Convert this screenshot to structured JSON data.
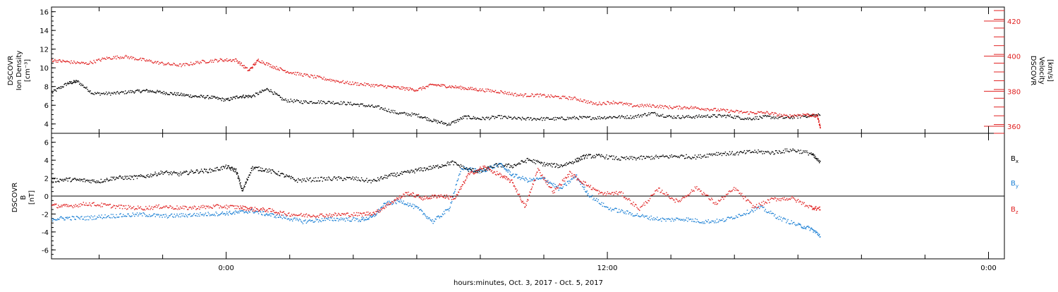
{
  "page": {
    "xaxis_title": "hours:minutes, Oct. 3, 2017 - Oct. 5, 2017"
  },
  "colors": {
    "black": "#000000",
    "red": "#e02020",
    "blue": "#1a7fd4"
  },
  "chart_data": [
    {
      "type": "scatter",
      "title": "",
      "x_range_hours": [
        -5.5,
        24.5
      ],
      "x_ticks": [
        {
          "hour": 0,
          "label": "0:00"
        },
        {
          "hour": 12,
          "label": "12:00"
        },
        {
          "hour": 24,
          "label": "0:00"
        }
      ],
      "left_axis": {
        "label_lines": [
          "DSCOVR",
          "Ion Density",
          "[cm⁻³]"
        ],
        "ylim": [
          3,
          16.5
        ],
        "ticks": [
          4,
          6,
          8,
          10,
          12,
          14,
          16
        ]
      },
      "right_axis": {
        "label_lines": [
          "DSCOVR",
          "Velocity",
          "[km/s]"
        ],
        "ylim": [
          356,
          428
        ],
        "ticks": [
          360,
          380,
          400,
          420
        ]
      },
      "series": [
        {
          "name": "",
          "axis": "left",
          "color": "#000000",
          "points": [
            [
              -5.5,
              7.4
            ],
            [
              -5.0,
              8.4
            ],
            [
              -4.7,
              8.6
            ],
            [
              -4.2,
              7.3
            ],
            [
              -3.6,
              7.3
            ],
            [
              -3.0,
              7.5
            ],
            [
              -2.5,
              7.6
            ],
            [
              -2.0,
              7.4
            ],
            [
              -1.5,
              7.2
            ],
            [
              -1.0,
              7.0
            ],
            [
              -0.5,
              6.9
            ],
            [
              0.0,
              6.6
            ],
            [
              0.4,
              7.0
            ],
            [
              0.8,
              7.0
            ],
            [
              1.3,
              7.8
            ],
            [
              1.8,
              6.6
            ],
            [
              2.4,
              6.4
            ],
            [
              3.0,
              6.4
            ],
            [
              3.6,
              6.3
            ],
            [
              4.2,
              6.1
            ],
            [
              4.8,
              5.8
            ],
            [
              5.4,
              5.2
            ],
            [
              6.0,
              5.0
            ],
            [
              6.5,
              4.4
            ],
            [
              7.0,
              4.0
            ],
            [
              7.5,
              4.8
            ],
            [
              8.0,
              4.6
            ],
            [
              8.6,
              4.8
            ],
            [
              9.2,
              4.6
            ],
            [
              9.8,
              4.6
            ],
            [
              10.4,
              4.6
            ],
            [
              11.0,
              4.7
            ],
            [
              11.6,
              4.7
            ],
            [
              12.2,
              4.8
            ],
            [
              12.8,
              4.8
            ],
            [
              13.4,
              5.2
            ],
            [
              14.0,
              4.8
            ],
            [
              14.6,
              4.8
            ],
            [
              15.2,
              4.9
            ],
            [
              15.8,
              4.9
            ],
            [
              16.4,
              4.6
            ],
            [
              17.0,
              4.8
            ],
            [
              17.6,
              4.7
            ],
            [
              18.2,
              4.9
            ],
            [
              18.7,
              5.0
            ]
          ]
        },
        {
          "name": "",
          "axis": "right",
          "color": "#e02020",
          "points": [
            [
              -5.5,
              398
            ],
            [
              -5.0,
              397
            ],
            [
              -4.4,
              396
            ],
            [
              -3.8,
              399
            ],
            [
              -3.2,
              400
            ],
            [
              -2.6,
              398
            ],
            [
              -2.0,
              396
            ],
            [
              -1.4,
              395
            ],
            [
              -0.8,
              397
            ],
            [
              -0.2,
              398
            ],
            [
              0.3,
              398
            ],
            [
              0.7,
              392
            ],
            [
              1.0,
              398
            ],
            [
              1.5,
              394
            ],
            [
              2.0,
              391
            ],
            [
              2.6,
              389
            ],
            [
              3.2,
              387
            ],
            [
              3.8,
              385
            ],
            [
              4.4,
              384
            ],
            [
              5.0,
              383
            ],
            [
              5.5,
              382
            ],
            [
              6.0,
              381
            ],
            [
              6.5,
              384
            ],
            [
              7.0,
              383
            ],
            [
              7.5,
              382
            ],
            [
              8.0,
              381
            ],
            [
              8.6,
              380
            ],
            [
              9.2,
              378
            ],
            [
              9.8,
              378
            ],
            [
              10.4,
              377
            ],
            [
              11.0,
              376
            ],
            [
              11.6,
              373
            ],
            [
              12.2,
              374
            ],
            [
              12.8,
              372
            ],
            [
              13.4,
              372
            ],
            [
              14.0,
              371
            ],
            [
              14.6,
              371
            ],
            [
              15.2,
              370
            ],
            [
              15.8,
              369
            ],
            [
              16.4,
              368
            ],
            [
              17.0,
              368
            ],
            [
              17.6,
              366
            ],
            [
              18.2,
              367
            ],
            [
              18.6,
              366
            ],
            [
              18.7,
              359
            ]
          ]
        }
      ]
    },
    {
      "type": "scatter",
      "title": "",
      "x_range_hours": [
        -5.5,
        24.5
      ],
      "left_axis": {
        "label_lines": [
          "DSCOVR",
          "B",
          "[nT]"
        ],
        "ylim": [
          -7,
          7
        ],
        "ticks": [
          -6,
          -4,
          -2,
          0,
          2,
          4,
          6
        ]
      },
      "zero_line": true,
      "series": [
        {
          "name": "Bx",
          "color": "#000000",
          "points": [
            [
              -5.5,
              1.8
            ],
            [
              -5.0,
              1.9
            ],
            [
              -4.5,
              1.8
            ],
            [
              -4.0,
              1.7
            ],
            [
              -3.5,
              2.1
            ],
            [
              -3.0,
              2.1
            ],
            [
              -2.5,
              2.3
            ],
            [
              -2.0,
              2.7
            ],
            [
              -1.5,
              2.5
            ],
            [
              -1.0,
              2.8
            ],
            [
              -0.5,
              2.9
            ],
            [
              0.0,
              3.3
            ],
            [
              0.3,
              2.9
            ],
            [
              0.5,
              0.6
            ],
            [
              0.8,
              3.2
            ],
            [
              1.2,
              3.0
            ],
            [
              1.7,
              2.5
            ],
            [
              2.2,
              1.8
            ],
            [
              2.8,
              1.9
            ],
            [
              3.4,
              2.0
            ],
            [
              4.0,
              2.0
            ],
            [
              4.6,
              1.7
            ],
            [
              5.1,
              2.3
            ],
            [
              5.6,
              2.6
            ],
            [
              6.1,
              3.0
            ],
            [
              6.6,
              3.3
            ],
            [
              7.1,
              3.8
            ],
            [
              7.6,
              3.0
            ],
            [
              8.0,
              2.8
            ],
            [
              8.5,
              3.5
            ],
            [
              9.0,
              3.4
            ],
            [
              9.5,
              4.1
            ],
            [
              10.0,
              3.6
            ],
            [
              10.5,
              3.4
            ],
            [
              11.0,
              4.0
            ],
            [
              11.3,
              4.5
            ],
            [
              11.8,
              4.5
            ],
            [
              12.4,
              4.2
            ],
            [
              13.0,
              4.3
            ],
            [
              13.6,
              4.4
            ],
            [
              14.2,
              4.5
            ],
            [
              14.8,
              4.4
            ],
            [
              15.4,
              4.8
            ],
            [
              16.0,
              4.8
            ],
            [
              16.6,
              5.0
            ],
            [
              17.2,
              4.9
            ],
            [
              17.8,
              5.2
            ],
            [
              18.4,
              4.8
            ],
            [
              18.7,
              3.7
            ]
          ]
        },
        {
          "name": "By",
          "color": "#1a7fd4",
          "points": [
            [
              -5.5,
              -2.5
            ],
            [
              -5.0,
              -2.4
            ],
            [
              -4.4,
              -2.4
            ],
            [
              -3.8,
              -2.2
            ],
            [
              -3.2,
              -2.1
            ],
            [
              -2.6,
              -2.0
            ],
            [
              -2.0,
              -2.2
            ],
            [
              -1.4,
              -2.1
            ],
            [
              -0.8,
              -2.0
            ],
            [
              -0.2,
              -1.9
            ],
            [
              0.3,
              -1.8
            ],
            [
              0.8,
              -1.6
            ],
            [
              1.3,
              -2.0
            ],
            [
              1.8,
              -2.3
            ],
            [
              2.4,
              -2.8
            ],
            [
              3.0,
              -2.6
            ],
            [
              3.6,
              -2.5
            ],
            [
              4.2,
              -2.6
            ],
            [
              4.6,
              -2.3
            ],
            [
              5.0,
              -0.8
            ],
            [
              5.5,
              -0.5
            ],
            [
              6.0,
              -1.3
            ],
            [
              6.5,
              -2.8
            ],
            [
              7.0,
              -1.4
            ],
            [
              7.4,
              3.2
            ],
            [
              8.0,
              2.8
            ],
            [
              8.6,
              3.6
            ],
            [
              9.0,
              2.4
            ],
            [
              9.5,
              1.8
            ],
            [
              10.0,
              2.0
            ],
            [
              10.5,
              0.8
            ],
            [
              11.0,
              2.3
            ],
            [
              11.4,
              0.2
            ],
            [
              12.0,
              -1.3
            ],
            [
              12.6,
              -1.8
            ],
            [
              13.2,
              -2.3
            ],
            [
              13.8,
              -2.6
            ],
            [
              14.4,
              -2.5
            ],
            [
              15.0,
              -2.8
            ],
            [
              15.6,
              -2.7
            ],
            [
              16.2,
              -2.0
            ],
            [
              16.8,
              -1.2
            ],
            [
              17.4,
              -2.4
            ],
            [
              18.0,
              -3.2
            ],
            [
              18.4,
              -3.6
            ],
            [
              18.7,
              -4.4
            ]
          ]
        },
        {
          "name": "Bz",
          "color": "#e02020",
          "points": [
            [
              -5.5,
              -1.0
            ],
            [
              -5.0,
              -1.1
            ],
            [
              -4.4,
              -0.8
            ],
            [
              -3.8,
              -1.0
            ],
            [
              -3.2,
              -1.2
            ],
            [
              -2.6,
              -1.3
            ],
            [
              -2.0,
              -1.1
            ],
            [
              -1.4,
              -1.3
            ],
            [
              -0.8,
              -1.2
            ],
            [
              -0.2,
              -1.1
            ],
            [
              0.4,
              -1.2
            ],
            [
              0.8,
              -1.4
            ],
            [
              1.3,
              -1.5
            ],
            [
              1.8,
              -1.9
            ],
            [
              2.4,
              -2.1
            ],
            [
              3.0,
              -2.1
            ],
            [
              3.6,
              -2.0
            ],
            [
              4.2,
              -2.0
            ],
            [
              4.7,
              -1.8
            ],
            [
              5.2,
              -0.6
            ],
            [
              5.7,
              0.4
            ],
            [
              6.2,
              -0.2
            ],
            [
              6.7,
              0.1
            ],
            [
              7.2,
              -0.2
            ],
            [
              7.6,
              2.4
            ],
            [
              8.1,
              3.3
            ],
            [
              8.6,
              2.4
            ],
            [
              9.0,
              1.6
            ],
            [
              9.4,
              -1.2
            ],
            [
              9.8,
              3.0
            ],
            [
              10.3,
              0.5
            ],
            [
              10.8,
              2.6
            ],
            [
              11.3,
              1.4
            ],
            [
              11.8,
              0.3
            ],
            [
              12.4,
              0.4
            ],
            [
              13.0,
              -1.4
            ],
            [
              13.6,
              0.8
            ],
            [
              14.2,
              -0.6
            ],
            [
              14.8,
              1.0
            ],
            [
              15.4,
              -0.8
            ],
            [
              16.0,
              0.9
            ],
            [
              16.6,
              -1.2
            ],
            [
              17.2,
              -0.3
            ],
            [
              17.8,
              -0.2
            ],
            [
              18.4,
              -1.2
            ],
            [
              18.7,
              -1.4
            ]
          ]
        }
      ]
    }
  ]
}
